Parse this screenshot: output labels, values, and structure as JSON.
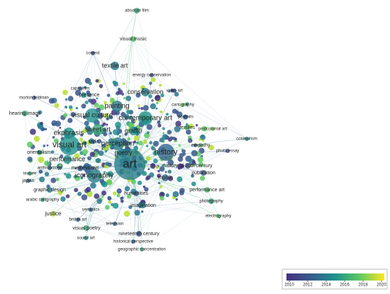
{
  "nodes": [
    {
      "label": "absolute film",
      "year": 2016
    },
    {
      "label": "visual music",
      "year": 2017
    },
    {
      "label": "context",
      "year": 2012
    },
    {
      "label": "textile art",
      "year": 2014
    },
    {
      "label": "energy conservation",
      "year": 2012
    },
    {
      "label": "capitalism",
      "year": 2013
    },
    {
      "label": "conservation",
      "year": 2014
    },
    {
      "label": "presence",
      "year": 2013
    },
    {
      "label": "morton feldman",
      "year": 2012
    },
    {
      "label": "video art",
      "year": 2012
    },
    {
      "label": "painting",
      "year": 2014
    },
    {
      "label": "cartography",
      "year": 2018
    },
    {
      "label": "contemporary art",
      "year": 2015
    },
    {
      "label": "visual culture",
      "year": 2015
    },
    {
      "label": "hearing image",
      "year": 2016
    },
    {
      "label": "textiles",
      "year": 2017
    },
    {
      "label": "portraits",
      "year": 2013
    },
    {
      "label": "street art",
      "year": 2016
    },
    {
      "label": "graffiti",
      "year": 2015
    },
    {
      "label": "postcolonial art",
      "year": 2018
    },
    {
      "label": "ekphrasis",
      "year": 2015
    },
    {
      "label": "style",
      "year": 2013
    },
    {
      "label": "perception",
      "year": 2014
    },
    {
      "label": "colonialism",
      "year": 2015
    },
    {
      "label": "visual art",
      "year": 2015
    },
    {
      "label": "poetry",
      "year": 2014
    },
    {
      "label": "history",
      "year": 2013
    },
    {
      "label": "empathy",
      "year": 2017
    },
    {
      "label": "photo essay",
      "year": 2012
    },
    {
      "label": "orientalism",
      "year": 2014
    },
    {
      "label": "performance",
      "year": 2015
    },
    {
      "label": "art",
      "year": 2014
    },
    {
      "label": "history of 20th century",
      "year": 2012
    },
    {
      "label": "iconography",
      "year": 2014
    },
    {
      "label": "medieval art",
      "year": 2013
    },
    {
      "label": "anthropology",
      "year": 2013
    },
    {
      "label": "publication",
      "year": 2012
    },
    {
      "label": "music",
      "year": 2013
    },
    {
      "label": "texture",
      "year": 2016
    },
    {
      "label": "japan",
      "year": 2013
    },
    {
      "label": "graphic design",
      "year": 2014
    },
    {
      "label": "performance art",
      "year": 2017
    },
    {
      "label": "humanities",
      "year": 2013
    },
    {
      "label": "imagination",
      "year": 2014
    },
    {
      "label": "arabic calligraphy",
      "year": 2016
    },
    {
      "label": "justice",
      "year": 2019
    },
    {
      "label": "semiotics",
      "year": 2013
    },
    {
      "label": "british art",
      "year": 2012
    },
    {
      "label": "photography",
      "year": 2016
    },
    {
      "label": "electrography",
      "year": 2017
    },
    {
      "label": "television",
      "year": 2013
    },
    {
      "label": "visual poetry",
      "year": 2016
    },
    {
      "label": "sound art",
      "year": 2015
    },
    {
      "label": "nineteenth century",
      "year": 2012
    },
    {
      "label": "historical perspective",
      "year": 2013
    },
    {
      "label": "geographic concentration",
      "year": 2016
    }
  ],
  "color_scale": {
    "ticks": [
      2010,
      2012,
      2014,
      2016,
      2018,
      2020
    ]
  }
}
